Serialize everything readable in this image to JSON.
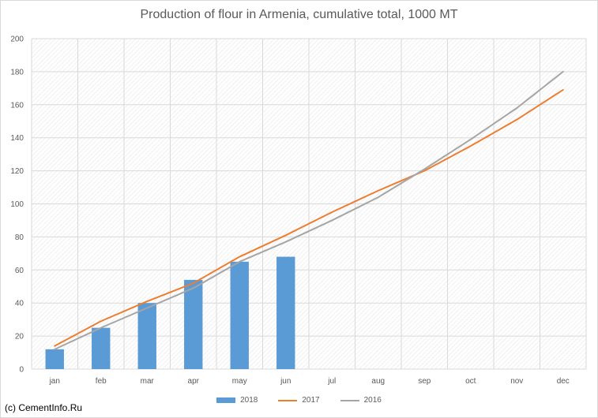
{
  "chart_data": {
    "type": "bar",
    "title": "Production of flour in Armenia, cumulative total, 1000 MT",
    "categories": [
      "jan",
      "feb",
      "mar",
      "apr",
      "may",
      "jun",
      "jul",
      "aug",
      "sep",
      "oct",
      "nov",
      "dec"
    ],
    "ylim": [
      0,
      200
    ],
    "yticks": [
      0,
      20,
      40,
      60,
      80,
      100,
      120,
      140,
      160,
      180,
      200
    ],
    "grid": true,
    "legend_position": "bottom",
    "series": [
      {
        "name": "2018",
        "kind": "bar",
        "color": "#5b9bd5",
        "values": [
          12,
          25,
          40,
          54,
          65,
          68,
          null,
          null,
          null,
          null,
          null,
          null
        ]
      },
      {
        "name": "2017",
        "kind": "line",
        "color": "#ed7d31",
        "values": [
          14,
          29,
          41,
          52,
          68,
          81,
          95,
          108,
          120,
          135,
          151,
          169
        ]
      },
      {
        "name": "2016",
        "kind": "line",
        "color": "#a5a5a5",
        "values": [
          12,
          25,
          37,
          49,
          65,
          77,
          90,
          104,
          121,
          139,
          158,
          180
        ]
      }
    ]
  },
  "credit": "(c) CementInfo.Ru"
}
